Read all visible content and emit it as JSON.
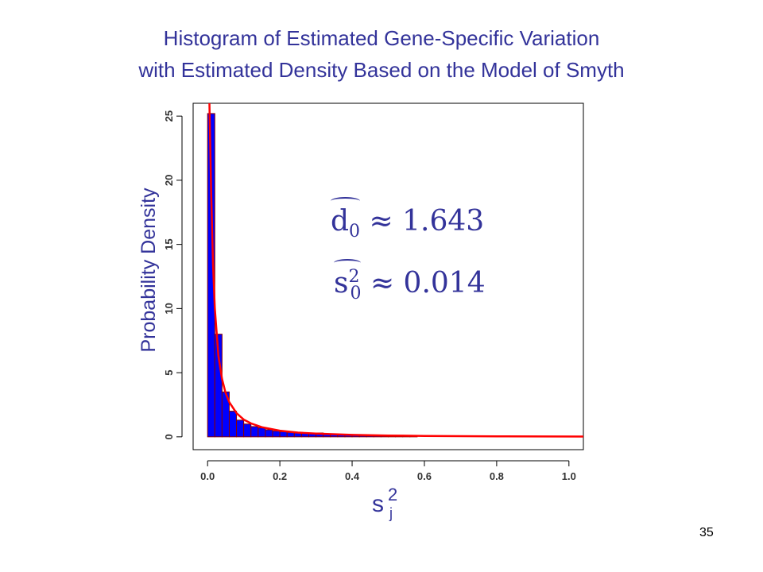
{
  "slide": {
    "number": "35"
  },
  "annotations": {
    "d0_symbol": "d",
    "d0_sub": "0",
    "d0_value": "≈ 1.643",
    "s0_symbol": "s",
    "s0_sup": "2",
    "s0_sub": "0",
    "s0_value": "≈ 0.014"
  },
  "chart_data": {
    "type": "bar",
    "title": "Histogram of Estimated Gene-Specific Variation",
    "subtitle": "with Estimated Density Based on the Model of Smyth",
    "xlabel": "s",
    "xlabel_sup": "2",
    "xlabel_sub": "j",
    "ylabel": "Probability Density",
    "xlim": [
      -0.04,
      1.04
    ],
    "ylim": [
      -1.0,
      26.0
    ],
    "xticks": [
      "0.0",
      "0.2",
      "0.4",
      "0.6",
      "0.8",
      "1.0"
    ],
    "xtick_values": [
      0,
      0.2,
      0.4,
      0.6,
      0.8,
      1.0
    ],
    "yticks": [
      "0",
      "5",
      "10",
      "15",
      "20",
      "25"
    ],
    "ytick_values": [
      0,
      5,
      10,
      15,
      20,
      25
    ],
    "bin_width": 0.02,
    "bins": [
      {
        "x0": 0.0,
        "y": 25.2
      },
      {
        "x0": 0.02,
        "y": 8.0
      },
      {
        "x0": 0.04,
        "y": 3.5
      },
      {
        "x0": 0.06,
        "y": 2.0
      },
      {
        "x0": 0.08,
        "y": 1.3
      },
      {
        "x0": 0.1,
        "y": 1.0
      },
      {
        "x0": 0.12,
        "y": 0.8
      },
      {
        "x0": 0.14,
        "y": 0.7
      },
      {
        "x0": 0.16,
        "y": 0.55
      },
      {
        "x0": 0.18,
        "y": 0.45
      },
      {
        "x0": 0.2,
        "y": 0.4
      },
      {
        "x0": 0.22,
        "y": 0.35
      },
      {
        "x0": 0.24,
        "y": 0.3
      },
      {
        "x0": 0.26,
        "y": 0.28
      },
      {
        "x0": 0.28,
        "y": 0.25
      },
      {
        "x0": 0.3,
        "y": 0.3
      },
      {
        "x0": 0.32,
        "y": 0.22
      },
      {
        "x0": 0.34,
        "y": 0.2
      },
      {
        "x0": 0.36,
        "y": 0.2
      },
      {
        "x0": 0.38,
        "y": 0.18
      },
      {
        "x0": 0.4,
        "y": 0.15
      },
      {
        "x0": 0.42,
        "y": 0.15
      },
      {
        "x0": 0.44,
        "y": 0.12
      },
      {
        "x0": 0.46,
        "y": 0.12
      },
      {
        "x0": 0.48,
        "y": 0.1
      },
      {
        "x0": 0.5,
        "y": 0.08
      },
      {
        "x0": 0.52,
        "y": 0.08
      },
      {
        "x0": 0.54,
        "y": 0.06
      },
      {
        "x0": 0.56,
        "y": 0.05
      }
    ],
    "density_curve": {
      "x": [
        0.005,
        0.01,
        0.015,
        0.02,
        0.03,
        0.04,
        0.05,
        0.06,
        0.08,
        0.1,
        0.12,
        0.15,
        0.2,
        0.25,
        0.3,
        0.4,
        0.5,
        0.6,
        0.8,
        1.04
      ],
      "y": [
        26.0,
        19.0,
        13.5,
        10.0,
        6.3,
        4.5,
        3.4,
        2.7,
        1.85,
        1.35,
        1.05,
        0.75,
        0.48,
        0.33,
        0.25,
        0.15,
        0.1,
        0.07,
        0.04,
        0.02
      ]
    },
    "colors": {
      "bars": "#0000ff",
      "bar_edge": "#8a0000",
      "curve": "#ff0000",
      "text": "#33339a"
    },
    "grid": false,
    "legend": "none"
  }
}
